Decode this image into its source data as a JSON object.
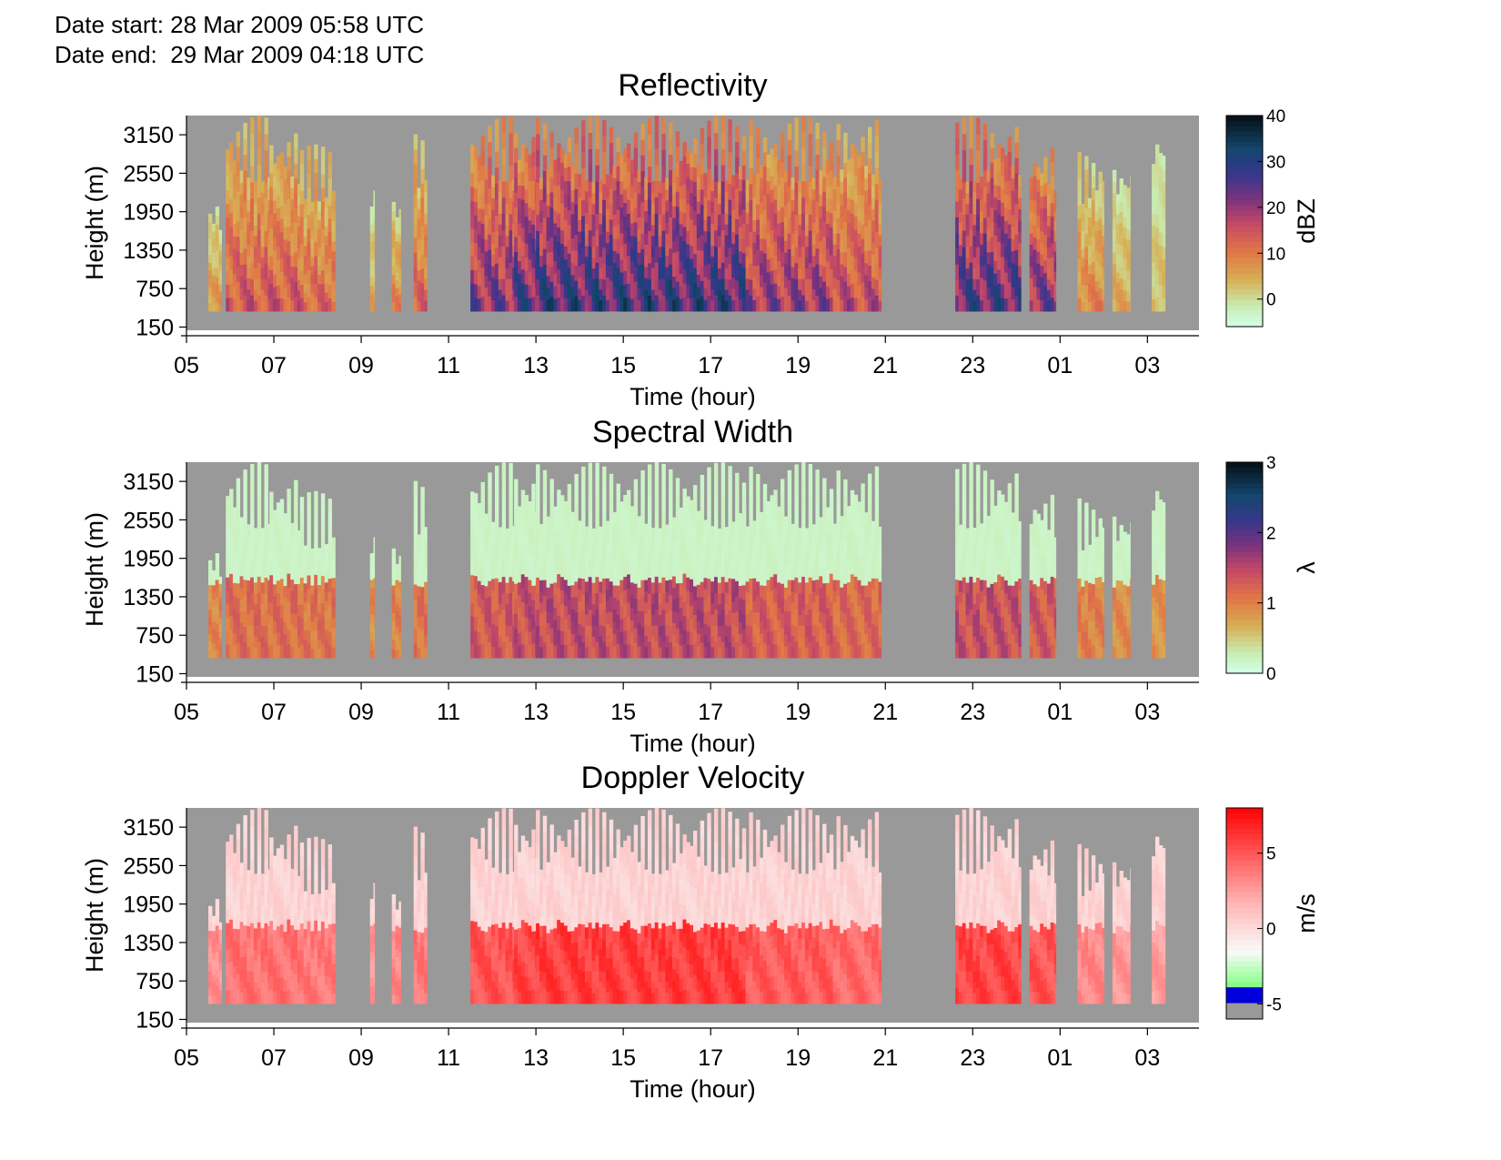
{
  "header": {
    "date_start": "Date start: 28 Mar 2009 05:58 UTC",
    "date_end": "Date end:  29 Mar 2009 04:18 UTC"
  },
  "chart_data": [
    {
      "type": "heatmap",
      "title": "Reflectivity",
      "xlabel": "Time (hour)",
      "ylabel": "Height (m)",
      "x_ticks": [
        "05",
        "07",
        "09",
        "11",
        "13",
        "15",
        "17",
        "19",
        "21",
        "23",
        "01",
        "03"
      ],
      "y_ticks": [
        150,
        750,
        1350,
        1950,
        2550,
        3150
      ],
      "colorbar": {
        "label": "dBZ",
        "ticks": [
          0,
          10,
          20,
          30,
          40
        ],
        "range": [
          -6,
          40
        ],
        "palette": "cubehelix"
      },
      "missing_color": "#999999"
    },
    {
      "type": "heatmap",
      "title": "Spectral Width",
      "xlabel": "Time (hour)",
      "ylabel": "Height (m)",
      "x_ticks": [
        "05",
        "07",
        "09",
        "11",
        "13",
        "15",
        "17",
        "19",
        "21",
        "23",
        "01",
        "03"
      ],
      "y_ticks": [
        150,
        750,
        1350,
        1950,
        2550,
        3150
      ],
      "colorbar": {
        "label": "λ",
        "ticks": [
          0,
          1,
          2,
          3
        ],
        "range": [
          0,
          3
        ],
        "palette": "cubehelix"
      },
      "missing_color": "#999999"
    },
    {
      "type": "heatmap",
      "title": "Doppler Velocity",
      "xlabel": "Time (hour)",
      "ylabel": "Height (m)",
      "x_ticks": [
        "05",
        "07",
        "09",
        "11",
        "13",
        "15",
        "17",
        "19",
        "21",
        "23",
        "01",
        "03"
      ],
      "y_ticks": [
        150,
        750,
        1350,
        1950,
        2550,
        3150
      ],
      "colorbar": {
        "label": "m/s",
        "ticks": [
          -5,
          0,
          5
        ],
        "range": [
          -6,
          8
        ],
        "palette": "velocity"
      },
      "missing_color": "#999999"
    }
  ]
}
